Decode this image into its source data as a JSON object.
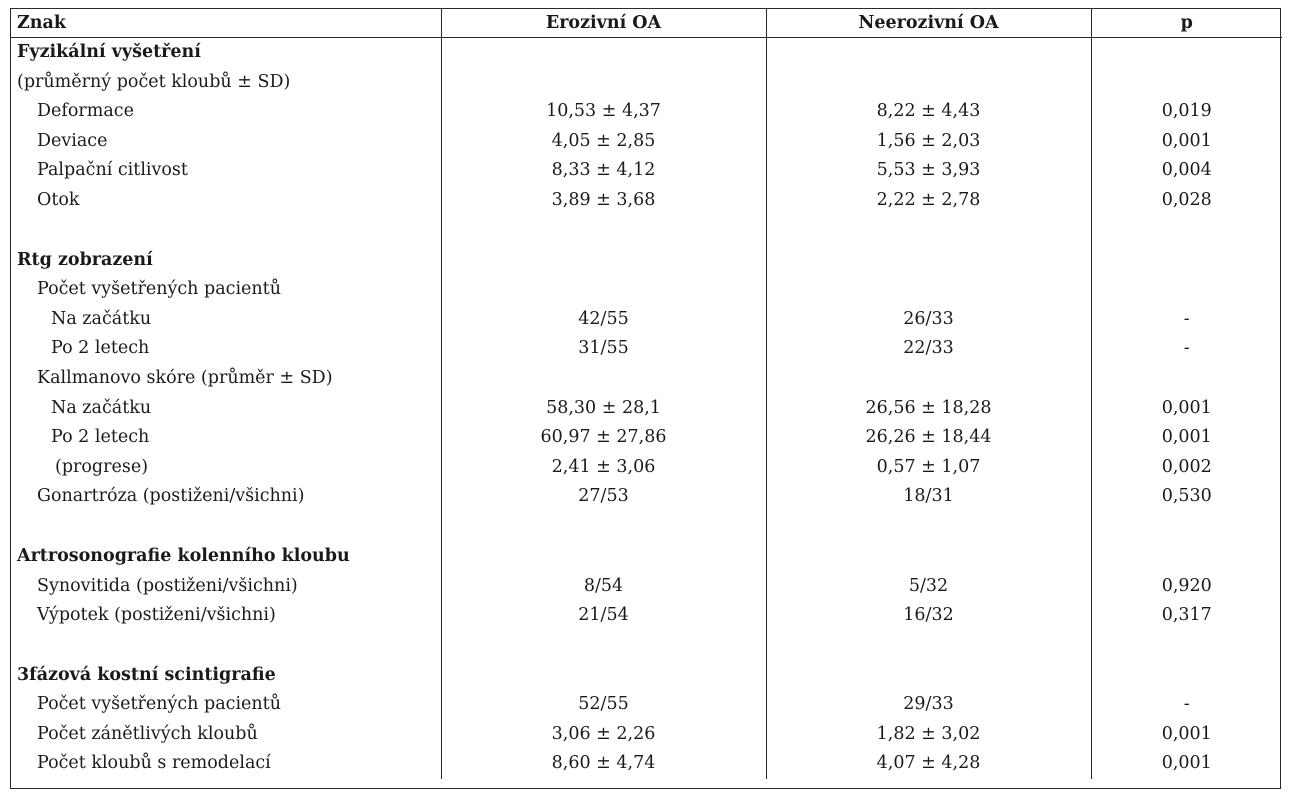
{
  "headers": {
    "sign": "Znak",
    "erosive": "Erozivní OA",
    "nonerosive": "Neerozivní OA",
    "p": "p"
  },
  "rows": [
    {
      "label": "Fyzikální vyšetření",
      "type": "section",
      "erosive": "",
      "nonerosive": "",
      "p": ""
    },
    {
      "label": "(průměrný počet kloubů ± SD)",
      "type": "sub0",
      "erosive": "",
      "nonerosive": "",
      "p": ""
    },
    {
      "label": "Deformace",
      "type": "sub1",
      "erosive": "10,53 ± 4,37",
      "nonerosive": "8,22 ± 4,43",
      "p": "0,019"
    },
    {
      "label": "Deviace",
      "type": "sub1",
      "erosive": "4,05 ± 2,85",
      "nonerosive": "1,56 ± 2,03",
      "p": "0,001"
    },
    {
      "label": "Palpační citlivost",
      "type": "sub1",
      "erosive": "8,33 ± 4,12",
      "nonerosive": "5,53 ± 3,93",
      "p": "0,004"
    },
    {
      "label": "Otok",
      "type": "sub1",
      "erosive": "3,89 ± 3,68",
      "nonerosive": "2,22 ± 2,78",
      "p": "0,028"
    },
    {
      "label": "",
      "type": "spacer",
      "erosive": "",
      "nonerosive": "",
      "p": ""
    },
    {
      "label": "Rtg zobrazení",
      "type": "section",
      "erosive": "",
      "nonerosive": "",
      "p": ""
    },
    {
      "label": "Počet vyšetřených pacientů",
      "type": "sub1",
      "erosive": "",
      "nonerosive": "",
      "p": ""
    },
    {
      "label": "Na začátku",
      "type": "sub2",
      "erosive": "42/55",
      "nonerosive": "26/33",
      "p": "-"
    },
    {
      "label": "Po 2 letech",
      "type": "sub2",
      "erosive": "31/55",
      "nonerosive": "22/33",
      "p": "-"
    },
    {
      "label": "Kallmanovo skóre (průměr ± SD)",
      "type": "sub1",
      "erosive": "",
      "nonerosive": "",
      "p": ""
    },
    {
      "label": "Na začátku",
      "type": "sub2",
      "erosive": "58,30 ± 28,1",
      "nonerosive": "26,56 ± 18,28",
      "p": "0,001"
    },
    {
      "label": "Po 2 letech",
      "type": "sub2",
      "erosive": "60,97 ± 27,86",
      "nonerosive": "26,26 ± 18,44",
      "p": "0,001"
    },
    {
      "label": "(progrese)",
      "type": "sub3",
      "erosive": "2,41 ± 3,06",
      "nonerosive": "0,57 ± 1,07",
      "p": "0,002"
    },
    {
      "label": "Gonartróza (postiženi/všichni)",
      "type": "sub1",
      "erosive": "27/53",
      "nonerosive": "18/31",
      "p": "0,530"
    },
    {
      "label": "",
      "type": "spacer",
      "erosive": "",
      "nonerosive": "",
      "p": ""
    },
    {
      "label": "Artrosonografie kolenního kloubu",
      "type": "section",
      "erosive": "",
      "nonerosive": "",
      "p": ""
    },
    {
      "label": "Synovitida (postiženi/všichni)",
      "type": "sub1",
      "erosive": "8/54",
      "nonerosive": "5/32",
      "p": "0,920"
    },
    {
      "label": "Výpotek (postiženi/všichni)",
      "type": "sub1",
      "erosive": "21/54",
      "nonerosive": "16/32",
      "p": "0,317"
    },
    {
      "label": "",
      "type": "spacer",
      "erosive": "",
      "nonerosive": "",
      "p": ""
    },
    {
      "label": "3fázová kostní scintigrafie",
      "type": "section",
      "erosive": "",
      "nonerosive": "",
      "p": ""
    },
    {
      "label": "Počet vyšetřených pacientů",
      "type": "sub1",
      "erosive": "52/55",
      "nonerosive": "29/33",
      "p": "-"
    },
    {
      "label": "Počet zánětlivých kloubů",
      "type": "sub1",
      "erosive": "3,06 ± 2,26",
      "nonerosive": "1,82 ± 3,02",
      "p": "0,001"
    },
    {
      "label": "Počet kloubů s remodelací",
      "type": "sub1",
      "erosive": "8,60 ± 4,74",
      "nonerosive": "4,07 ± 4,28",
      "p": "0,001"
    }
  ]
}
